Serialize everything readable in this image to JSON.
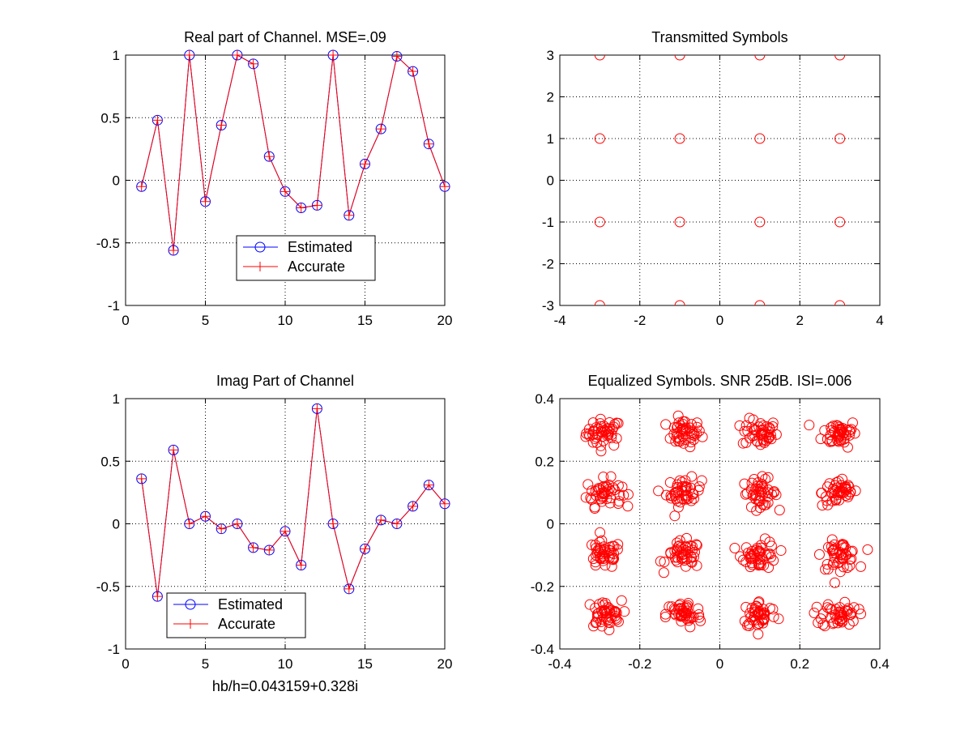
{
  "figure_colors": {
    "estimated": "#0000ff",
    "accurate": "#ff0000",
    "grid": "#000000",
    "background": "#ffffff"
  },
  "chart_data": [
    {
      "type": "line",
      "title": "Real part of Channel. MSE=.09",
      "xlabel": "",
      "ylabel": "",
      "xlim": [
        0,
        20
      ],
      "ylim": [
        -1,
        1
      ],
      "xticks": [
        0,
        5,
        10,
        15,
        20
      ],
      "yticks": [
        -1,
        -0.5,
        0,
        0.5,
        1
      ],
      "xtick_labels": [
        "0",
        "5",
        "10",
        "15",
        "20"
      ],
      "ytick_labels": [
        "-1",
        "-0.5",
        "0",
        "0.5",
        "1"
      ],
      "grid": true,
      "legend": {
        "placement": "lower-center",
        "entries": [
          "Estimated",
          "Accurate"
        ]
      },
      "x": [
        1,
        2,
        3,
        4,
        5,
        6,
        7,
        8,
        9,
        10,
        11,
        12,
        13,
        14,
        15,
        16,
        17,
        18,
        19,
        20
      ],
      "series": [
        {
          "name": "Estimated",
          "marker": "o",
          "color": "#0000ff",
          "values": [
            -0.05,
            0.48,
            -0.56,
            1.0,
            -0.17,
            0.44,
            1.0,
            0.93,
            0.19,
            -0.09,
            -0.22,
            -0.2,
            1.0,
            -0.28,
            0.13,
            0.41,
            0.99,
            0.87,
            0.29,
            -0.05
          ]
        },
        {
          "name": "Accurate",
          "marker": "+",
          "color": "#ff0000",
          "values": [
            -0.05,
            0.48,
            -0.56,
            1.0,
            -0.17,
            0.44,
            1.0,
            0.93,
            0.19,
            -0.09,
            -0.22,
            -0.2,
            1.0,
            -0.28,
            0.13,
            0.41,
            0.99,
            0.87,
            0.29,
            -0.05
          ]
        }
      ]
    },
    {
      "type": "scatter",
      "title": "Transmitted Symbols",
      "xlabel": "",
      "ylabel": "",
      "xlim": [
        -4,
        4
      ],
      "ylim": [
        -3,
        3
      ],
      "xticks": [
        -4,
        -2,
        0,
        2,
        4
      ],
      "yticks": [
        -3,
        -2,
        -1,
        0,
        1,
        2,
        3
      ],
      "xtick_labels": [
        "-4",
        "-2",
        "0",
        "2",
        "4"
      ],
      "ytick_labels": [
        "-3",
        "-2",
        "-1",
        "0",
        "1",
        "2",
        "3"
      ],
      "grid": true,
      "marker": "o",
      "color": "#ff0000",
      "points": [
        [
          -3,
          3
        ],
        [
          -1,
          3
        ],
        [
          1,
          3
        ],
        [
          3,
          3
        ],
        [
          -3,
          1
        ],
        [
          -1,
          1
        ],
        [
          1,
          1
        ],
        [
          3,
          1
        ],
        [
          -3,
          -1
        ],
        [
          -1,
          -1
        ],
        [
          1,
          -1
        ],
        [
          3,
          -1
        ],
        [
          -3,
          -3
        ],
        [
          -1,
          -3
        ],
        [
          1,
          -3
        ],
        [
          3,
          -3
        ]
      ]
    },
    {
      "type": "line",
      "title": "Imag Part of Channel",
      "xlabel": "hb/h=0.043159+0.328i",
      "ylabel": "",
      "xlim": [
        0,
        20
      ],
      "ylim": [
        -1,
        1
      ],
      "xticks": [
        0,
        5,
        10,
        15,
        20
      ],
      "yticks": [
        -1,
        -0.5,
        0,
        0.5,
        1
      ],
      "xtick_labels": [
        "0",
        "5",
        "10",
        "15",
        "20"
      ],
      "ytick_labels": [
        "-1",
        "-0.5",
        "0",
        "0.5",
        "1"
      ],
      "grid": true,
      "legend": {
        "placement": "lower-left",
        "entries": [
          "Estimated",
          "Accurate"
        ]
      },
      "x": [
        1,
        2,
        3,
        4,
        5,
        6,
        7,
        8,
        9,
        10,
        11,
        12,
        13,
        14,
        15,
        16,
        17,
        18,
        19,
        20
      ],
      "series": [
        {
          "name": "Estimated",
          "marker": "o",
          "color": "#0000ff",
          "values": [
            0.36,
            -0.58,
            0.59,
            0.0,
            0.06,
            -0.04,
            0.0,
            -0.19,
            -0.21,
            -0.06,
            -0.33,
            0.92,
            0.0,
            -0.52,
            -0.2,
            0.03,
            0.0,
            0.14,
            0.31,
            0.16
          ]
        },
        {
          "name": "Accurate",
          "marker": "+",
          "color": "#ff0000",
          "values": [
            0.36,
            -0.58,
            0.59,
            0.0,
            0.06,
            -0.04,
            0.0,
            -0.19,
            -0.21,
            -0.06,
            -0.33,
            0.92,
            0.0,
            -0.52,
            -0.2,
            0.03,
            0.0,
            0.14,
            0.31,
            0.16
          ]
        }
      ]
    },
    {
      "type": "scatter",
      "title": "Equalized Symbols. SNR 25dB. ISI=.006",
      "xlabel": "",
      "ylabel": "",
      "xlim": [
        -0.4,
        0.4
      ],
      "ylim": [
        -0.4,
        0.4
      ],
      "xticks": [
        -0.4,
        -0.2,
        0,
        0.2,
        0.4
      ],
      "yticks": [
        -0.4,
        -0.2,
        0,
        0.2,
        0.4
      ],
      "xtick_labels": [
        "-0.4",
        "-0.2",
        "0",
        "0.2",
        "0.4"
      ],
      "ytick_labels": [
        "-0.4",
        "-0.2",
        "0",
        "0.2",
        "0.4"
      ],
      "grid": true,
      "marker": "o",
      "color": "#ff0000",
      "cluster_centers": [
        [
          -0.29,
          0.29
        ],
        [
          -0.09,
          0.29
        ],
        [
          0.1,
          0.29
        ],
        [
          0.3,
          0.29
        ],
        [
          -0.29,
          0.1
        ],
        [
          -0.09,
          0.1
        ],
        [
          0.1,
          0.1
        ],
        [
          0.3,
          0.1
        ],
        [
          -0.29,
          -0.1
        ],
        [
          -0.09,
          -0.1
        ],
        [
          0.1,
          -0.1
        ],
        [
          0.3,
          -0.1
        ],
        [
          -0.29,
          -0.29
        ],
        [
          -0.09,
          -0.29
        ],
        [
          0.1,
          -0.29
        ],
        [
          0.3,
          -0.29
        ]
      ],
      "points_per_cluster": 45,
      "cluster_spread": 0.022
    }
  ]
}
